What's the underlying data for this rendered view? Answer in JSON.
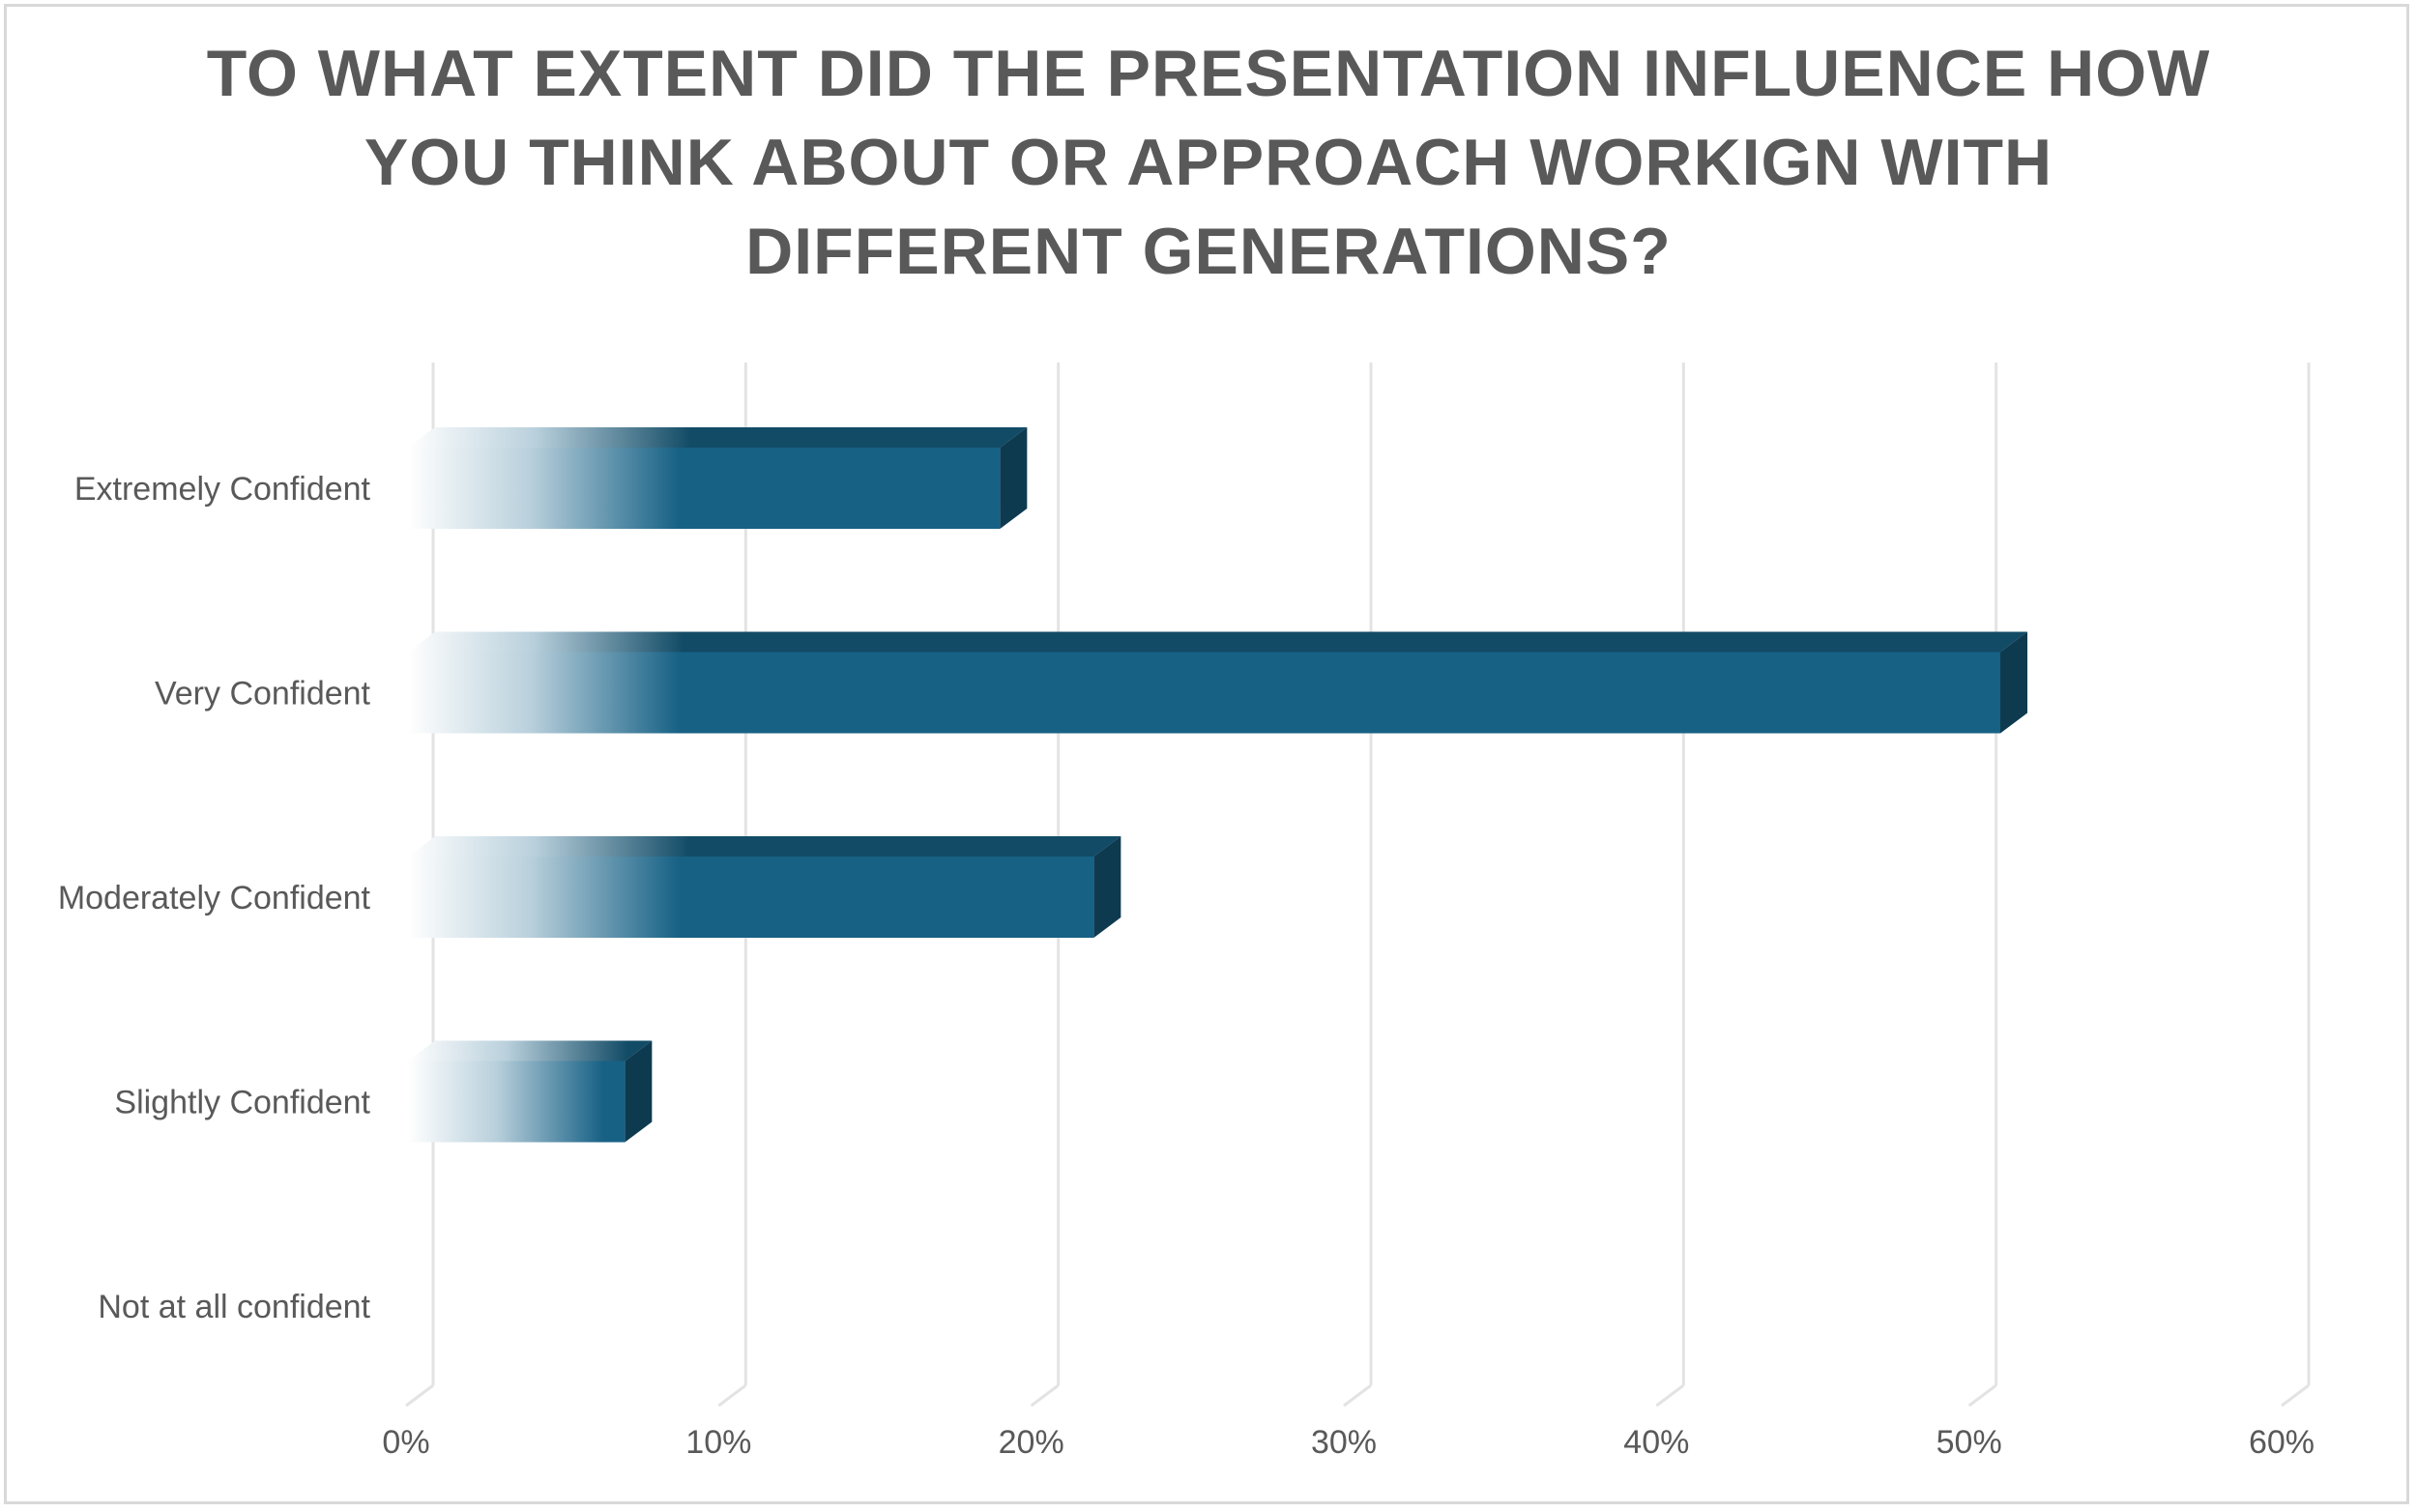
{
  "chart_data": {
    "type": "bar",
    "orientation": "horizontal",
    "title": "TO WHAT EXTENT DID THE PRESENTATION INFLUENCE HOW YOU THINK ABOUT OR APPROACH WORKIGN WITH DIFFERENT GENERATIONS?",
    "categories": [
      "Extremely Confident",
      "Very Confident",
      "Moderately Confident",
      "Slightly Confident",
      "Not at all confident"
    ],
    "values": [
      19,
      51,
      22,
      7,
      0
    ],
    "x_ticks": [
      "0%",
      "10%",
      "20%",
      "30%",
      "40%",
      "50%",
      "60%"
    ],
    "xlim": [
      0,
      60
    ],
    "xlabel": "",
    "ylabel": "",
    "grid": true,
    "legend": "none",
    "colors": {
      "bar": "#176185",
      "bar_top": "#124b66",
      "bar_side": "#0e3a50",
      "gridline": "#e3e3e3",
      "text": "#595959"
    }
  }
}
